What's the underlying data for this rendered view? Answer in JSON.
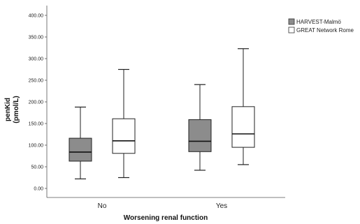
{
  "chart_data": {
    "type": "boxplot",
    "xlabel": "Worsening renal function",
    "ylabel_line1": "penKid",
    "ylabel_line2": "(pmol/L)",
    "ylim": [
      0,
      420
    ],
    "yticks": [
      "0.00",
      "50.00",
      "100.00",
      "150.00",
      "200.00",
      "250.00",
      "300.00",
      "350.00",
      "400.00"
    ],
    "ytick_values": [
      0,
      50,
      100,
      150,
      200,
      250,
      300,
      350,
      400
    ],
    "categories": [
      "No",
      "Yes"
    ],
    "legend_position": "top-right",
    "grid": false,
    "series": [
      {
        "name": "HARVEST-Malmö",
        "color": "#8c8c8c",
        "boxes": [
          {
            "min": 22,
            "q1": 63,
            "median": 84,
            "q3": 116,
            "max": 188
          },
          {
            "min": 42,
            "q1": 85,
            "median": 109,
            "q3": 159,
            "max": 240
          }
        ]
      },
      {
        "name": "GREAT Network Rome",
        "color": "#ffffff",
        "boxes": [
          {
            "min": 25,
            "q1": 81,
            "median": 110,
            "q3": 161,
            "max": 275
          },
          {
            "min": 55,
            "q1": 95,
            "median": 126,
            "q3": 189,
            "max": 323
          }
        ]
      }
    ]
  }
}
